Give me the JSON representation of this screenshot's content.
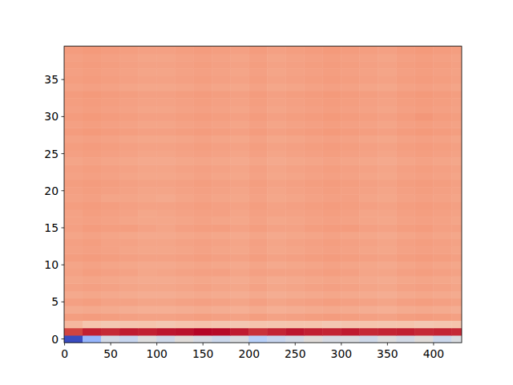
{
  "chart_data": {
    "type": "heatmap",
    "color": "coolwarm",
    "color_range": [
      -600,
      200
    ],
    "xlim": [
      -0.5,
      430.5
    ],
    "ylim": [
      -0.5,
      39.5
    ],
    "xticks": [
      0,
      50,
      100,
      150,
      200,
      250,
      300,
      350,
      400
    ],
    "yticks": [
      0,
      5,
      10,
      15,
      20,
      25,
      30,
      35
    ],
    "x": [
      -0.5,
      19.5,
      39.5,
      59.5,
      79.5,
      99.5,
      119.5,
      139.5,
      159.5,
      179.5,
      199.5,
      219.5,
      239.5,
      259.5,
      279.5,
      299.5,
      319.5,
      339.5,
      359.5,
      379.5,
      399.5,
      419.5,
      430.5
    ],
    "y": [
      -0.5,
      0.5,
      1.5,
      2.5,
      3.5,
      4.5,
      5.5,
      6.5,
      7.5,
      8.5,
      9.5,
      10.5,
      11.5,
      12.5,
      13.5,
      14.5,
      15.5,
      16.5,
      17.5,
      18.5,
      19.5,
      20.5,
      21.5,
      22.5,
      23.5,
      24.5,
      25.5,
      26.5,
      27.5,
      28.5,
      29.5,
      30.5,
      31.5,
      32.5,
      33.5,
      34.5,
      35.5,
      36.5,
      37.5,
      38.5,
      39.5
    ],
    "cells": [
      [
        -600,
        -380,
        -230,
        -260,
        -200,
        -240,
        -190,
        -220,
        -250,
        -210,
        -300,
        -260,
        -230,
        -190,
        -220,
        -210,
        -240,
        -200,
        -230,
        -190,
        -250,
        -210
      ],
      [
        130,
        170,
        160,
        175,
        170,
        180,
        185,
        200,
        195,
        175,
        150,
        165,
        180,
        170,
        165,
        175,
        160,
        165,
        170,
        160,
        165,
        160
      ],
      [
        -70,
        -100,
        -110,
        -105,
        -100,
        -110,
        -100,
        -95,
        -105,
        -110,
        -100,
        -105,
        -100,
        -100,
        -110,
        -105,
        -100,
        -105,
        -100,
        -110,
        -105,
        -100
      ],
      [
        -10,
        -5,
        -10,
        -15,
        -20,
        -20,
        -15,
        -10,
        -15,
        -20,
        -10,
        -20,
        -15,
        -10,
        -5,
        -10,
        -15,
        -20,
        -10,
        -5,
        -10,
        -15
      ],
      [
        -40,
        -35,
        -40,
        -45,
        -50,
        -50,
        -45,
        -40,
        -45,
        -50,
        -40,
        -50,
        -45,
        -40,
        -35,
        -40,
        -45,
        -50,
        -40,
        -35,
        -40,
        -45
      ],
      [
        -15,
        -10,
        -20,
        -20,
        -25,
        -25,
        -20,
        -15,
        -20,
        -25,
        -15,
        -25,
        -20,
        -15,
        -10,
        -15,
        -20,
        -25,
        -15,
        -10,
        -15,
        -20
      ],
      [
        -35,
        -30,
        -35,
        -40,
        -45,
        -45,
        -40,
        -35,
        -40,
        -45,
        -35,
        -45,
        -40,
        -35,
        -30,
        -35,
        -40,
        -45,
        -35,
        -30,
        -35,
        -40
      ],
      [
        -20,
        -15,
        -20,
        -25,
        -30,
        -30,
        -25,
        -20,
        -25,
        -30,
        -20,
        -30,
        -25,
        -20,
        -15,
        -20,
        -25,
        -30,
        -20,
        -15,
        -20,
        -25
      ],
      [
        -30,
        -25,
        -30,
        -35,
        -40,
        -40,
        -35,
        -30,
        -35,
        -40,
        -30,
        -40,
        -35,
        -30,
        -25,
        -30,
        -35,
        -40,
        -30,
        -25,
        -30,
        -35
      ],
      [
        -20,
        -10,
        -15,
        -20,
        -30,
        -25,
        -20,
        -15,
        -15,
        -25,
        -15,
        -20,
        -20,
        -15,
        -10,
        -15,
        -25,
        -25,
        -15,
        -10,
        -15,
        -20
      ],
      [
        -25,
        -20,
        -25,
        -30,
        -35,
        -35,
        -30,
        -25,
        -30,
        -35,
        -25,
        -35,
        -30,
        -25,
        -20,
        -25,
        -30,
        -35,
        -25,
        -20,
        -25,
        -30
      ],
      [
        -10,
        -5,
        -10,
        -15,
        -20,
        -20,
        -15,
        -10,
        -15,
        -20,
        -10,
        -20,
        -15,
        -10,
        -5,
        -10,
        -15,
        -20,
        -10,
        -5,
        -10,
        -15
      ],
      [
        -20,
        -15,
        -20,
        -25,
        -30,
        -30,
        -25,
        -20,
        -25,
        -30,
        -20,
        -30,
        -25,
        -20,
        -15,
        -20,
        -25,
        -30,
        -20,
        -15,
        -20,
        -25
      ],
      [
        -15,
        -10,
        -20,
        -20,
        -25,
        -25,
        -20,
        -15,
        -20,
        -25,
        -15,
        -25,
        -20,
        -15,
        -10,
        -15,
        -20,
        -25,
        -15,
        -10,
        -15,
        -20
      ],
      [
        -25,
        -20,
        -25,
        -30,
        -35,
        -35,
        -30,
        -25,
        -30,
        -35,
        -25,
        -35,
        -30,
        -25,
        -20,
        -25,
        -30,
        -35,
        -25,
        -20,
        -25,
        -30
      ],
      [
        -15,
        -5,
        -10,
        -10,
        -20,
        -25,
        -15,
        -10,
        -10,
        -20,
        -10,
        -20,
        -20,
        -10,
        -5,
        -5,
        -15,
        -20,
        -10,
        -5,
        -15,
        -15
      ],
      [
        -20,
        -15,
        -20,
        -25,
        -30,
        -30,
        -25,
        -20,
        -25,
        -30,
        -20,
        -30,
        -25,
        -20,
        -15,
        -20,
        -25,
        -30,
        -20,
        -15,
        -20,
        -25
      ],
      [
        -20,
        -10,
        -15,
        -20,
        -30,
        -25,
        -20,
        -15,
        -15,
        -25,
        -15,
        -20,
        -20,
        -15,
        -10,
        -15,
        -25,
        -25,
        -15,
        -10,
        -15,
        -20
      ],
      [
        -10,
        -5,
        -10,
        -15,
        -20,
        -20,
        -15,
        -10,
        -15,
        -20,
        -10,
        -20,
        -15,
        -10,
        -5,
        -10,
        -15,
        -20,
        -10,
        -5,
        -10,
        -15
      ],
      [
        -20,
        -15,
        -25,
        -25,
        -30,
        -35,
        -25,
        -20,
        -25,
        -30,
        -20,
        -30,
        -25,
        -20,
        -15,
        -15,
        -25,
        -30,
        -20,
        -15,
        -20,
        -25
      ],
      [
        -15,
        -10,
        -15,
        -20,
        -25,
        -25,
        -20,
        -15,
        -20,
        -25,
        -15,
        -25,
        -20,
        -15,
        -10,
        -15,
        -20,
        -25,
        -15,
        -10,
        -15,
        -20
      ],
      [
        -10,
        -5,
        -10,
        -15,
        -20,
        -20,
        -15,
        -10,
        -15,
        -20,
        -10,
        -20,
        -15,
        -10,
        -5,
        -10,
        -15,
        -20,
        -10,
        -5,
        -10,
        -15
      ],
      [
        -20,
        -15,
        -20,
        -25,
        -30,
        -30,
        -25,
        -20,
        -25,
        -30,
        -20,
        -30,
        -25,
        -20,
        -15,
        -20,
        -25,
        -30,
        -20,
        -15,
        -20,
        -25
      ],
      [
        -15,
        -10,
        -15,
        -20,
        -25,
        -25,
        -20,
        -15,
        -20,
        -25,
        -15,
        -25,
        -20,
        -15,
        -10,
        -15,
        -20,
        -25,
        -15,
        -10,
        -15,
        -20
      ],
      [
        -25,
        -20,
        -25,
        -30,
        -35,
        -35,
        -30,
        -25,
        -30,
        -35,
        -25,
        -35,
        -30,
        -25,
        -20,
        -25,
        -30,
        -35,
        -25,
        -20,
        -25,
        -30
      ],
      [
        -15,
        -10,
        -15,
        -20,
        -25,
        -25,
        -20,
        -15,
        -20,
        -25,
        -15,
        -25,
        -20,
        -15,
        -10,
        -15,
        -20,
        -25,
        -15,
        -10,
        -15,
        -20
      ],
      [
        -10,
        -5,
        -10,
        -15,
        -20,
        -20,
        -15,
        -10,
        -15,
        -20,
        -10,
        -20,
        -15,
        -10,
        -5,
        -10,
        -15,
        -20,
        -10,
        -5,
        -10,
        -15
      ],
      [
        -20,
        -15,
        -20,
        -25,
        -30,
        -30,
        -25,
        -20,
        -25,
        -30,
        -20,
        -30,
        -25,
        -20,
        -15,
        -20,
        -25,
        -30,
        -20,
        -15,
        -20,
        -25
      ],
      [
        -5,
        0,
        -5,
        -10,
        -15,
        -15,
        -10,
        -5,
        -10,
        -15,
        -5,
        -15,
        -10,
        -5,
        0,
        -5,
        -10,
        -15,
        -5,
        0,
        -5,
        -10
      ],
      [
        -15,
        -10,
        -15,
        -20,
        -25,
        -25,
        -20,
        -15,
        -20,
        -25,
        -15,
        -25,
        -20,
        -15,
        -10,
        -15,
        -20,
        -25,
        -15,
        -10,
        -15,
        -20
      ],
      [
        -5,
        0,
        -5,
        -10,
        -15,
        -15,
        -10,
        -5,
        -10,
        -15,
        -5,
        -15,
        -10,
        -5,
        0,
        -5,
        -10,
        -15,
        -5,
        5,
        -5,
        -10
      ],
      [
        -15,
        -10,
        -15,
        -20,
        -25,
        -25,
        -20,
        -15,
        -20,
        -25,
        -15,
        -25,
        -20,
        -15,
        -10,
        -15,
        -20,
        -25,
        -15,
        -10,
        -15,
        -20
      ],
      [
        -10,
        -5,
        -10,
        -15,
        -20,
        -20,
        -15,
        -10,
        -15,
        -20,
        -10,
        -20,
        -15,
        -10,
        -5,
        -10,
        -15,
        -20,
        -10,
        -5,
        -10,
        -15
      ],
      [
        -5,
        0,
        -5,
        -10,
        -15,
        -15,
        -10,
        -5,
        -10,
        -15,
        -5,
        -15,
        -10,
        -5,
        0,
        -5,
        -10,
        -15,
        -5,
        0,
        -5,
        -10
      ],
      [
        -20,
        -15,
        -20,
        -25,
        -30,
        -30,
        -25,
        -20,
        -25,
        -30,
        -20,
        -30,
        -25,
        -20,
        -15,
        -20,
        -25,
        -30,
        -20,
        -15,
        -20,
        -25
      ],
      [
        -10,
        -5,
        -10,
        -15,
        -20,
        -20,
        -15,
        -10,
        -15,
        -20,
        -10,
        -20,
        -15,
        -10,
        -5,
        -10,
        -15,
        -20,
        -10,
        -5,
        -10,
        -15
      ],
      [
        -15,
        -10,
        -15,
        -20,
        -25,
        -25,
        -20,
        -15,
        -20,
        -25,
        -15,
        -25,
        -20,
        -15,
        -10,
        -15,
        -20,
        -25,
        -15,
        -10,
        -15,
        -20
      ],
      [
        -10,
        -5,
        -10,
        -15,
        -20,
        -20,
        -15,
        -10,
        -15,
        -20,
        -10,
        -20,
        -15,
        -10,
        -5,
        -10,
        -15,
        -20,
        -10,
        -5,
        -10,
        -15
      ],
      [
        -15,
        -10,
        -15,
        -20,
        -25,
        -25,
        -20,
        -15,
        -20,
        -25,
        -15,
        -25,
        -20,
        -15,
        -10,
        -15,
        -20,
        -25,
        -15,
        -10,
        -15,
        -20
      ],
      [
        -5,
        0,
        -5,
        -10,
        -15,
        -15,
        -10,
        -5,
        -10,
        -15,
        -5,
        -15,
        -10,
        -5,
        0,
        -5,
        -10,
        -15,
        -5,
        0,
        -5,
        -10
      ]
    ]
  }
}
